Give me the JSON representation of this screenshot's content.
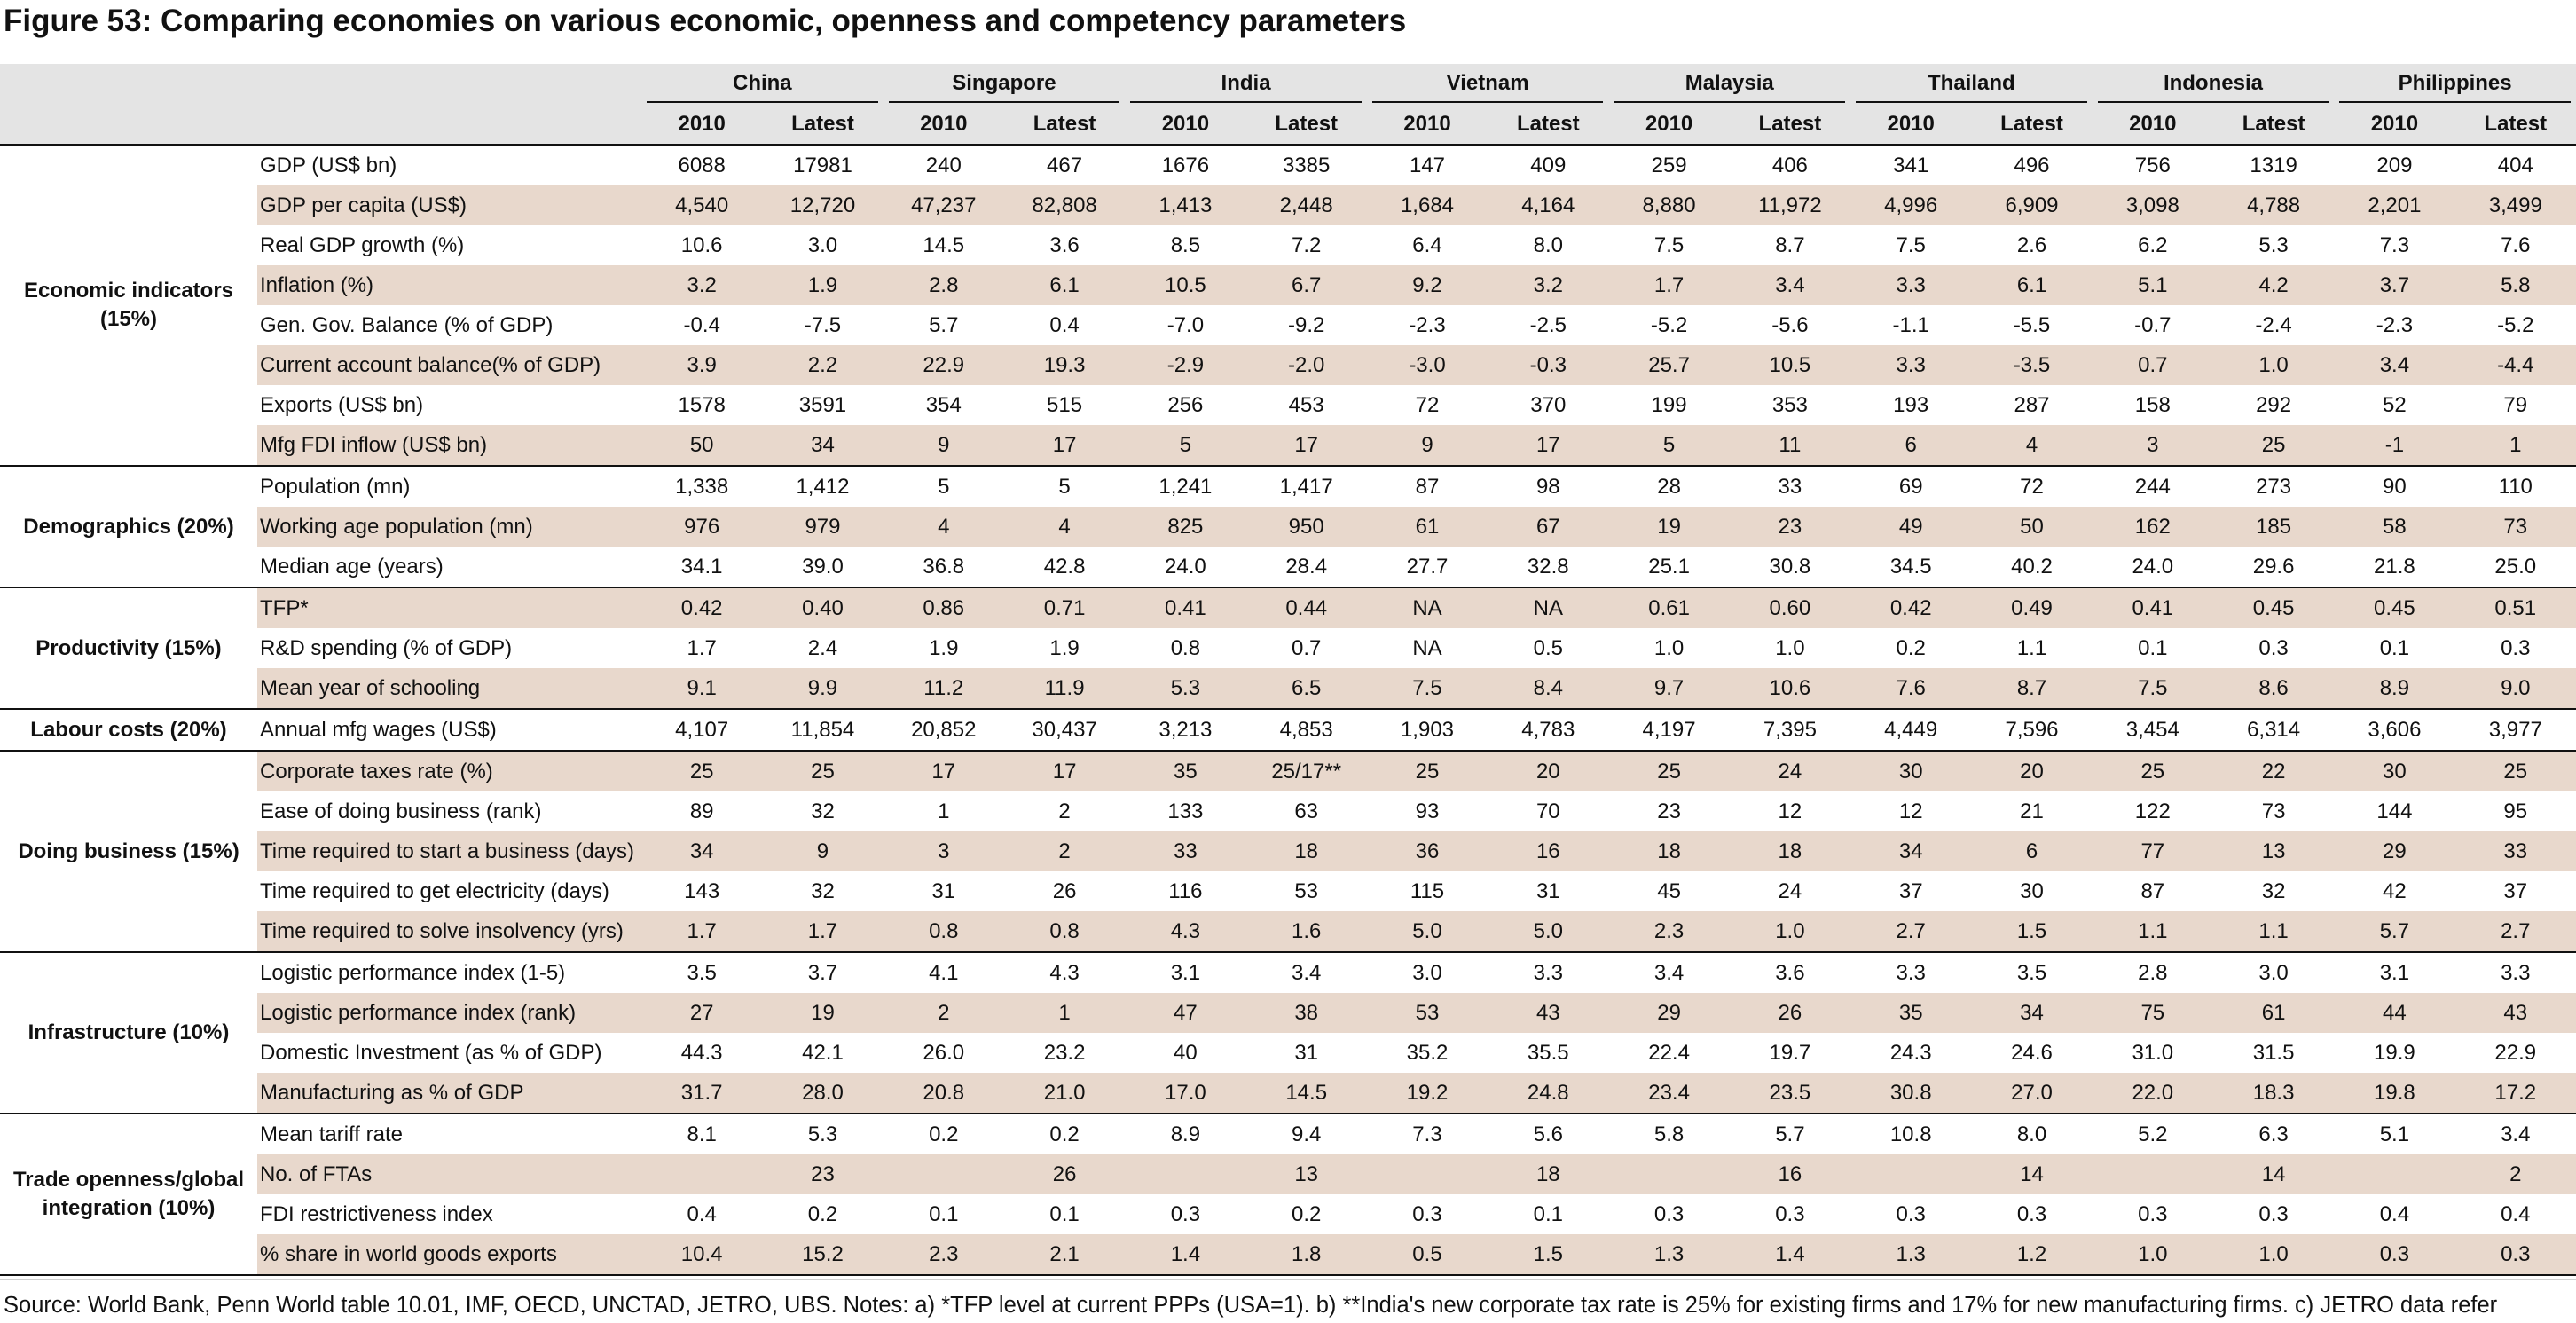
{
  "title": "Figure 53: Comparing economies on various economic, openness and competency parameters",
  "countries": [
    "China",
    "Singapore",
    "India",
    "Vietnam",
    "Malaysia",
    "Thailand",
    "Indonesia",
    "Philippines"
  ],
  "year_labels": [
    "2010",
    "Latest"
  ],
  "groups": [
    {
      "name": "Economic indicators (15%)",
      "rows": [
        {
          "label": "GDP (US$ bn)",
          "values": [
            "6088",
            "17981",
            "240",
            "467",
            "1676",
            "3385",
            "147",
            "409",
            "259",
            "406",
            "341",
            "496",
            "756",
            "1319",
            "209",
            "404"
          ]
        },
        {
          "label": "GDP per capita (US$)",
          "values": [
            "4,540",
            "12,720",
            "47,237",
            "82,808",
            "1,413",
            "2,448",
            "1,684",
            "4,164",
            "8,880",
            "11,972",
            "4,996",
            "6,909",
            "3,098",
            "4,788",
            "2,201",
            "3,499"
          ]
        },
        {
          "label": "Real GDP growth (%)",
          "values": [
            "10.6",
            "3.0",
            "14.5",
            "3.6",
            "8.5",
            "7.2",
            "6.4",
            "8.0",
            "7.5",
            "8.7",
            "7.5",
            "2.6",
            "6.2",
            "5.3",
            "7.3",
            "7.6"
          ]
        },
        {
          "label": "Inflation (%)",
          "values": [
            "3.2",
            "1.9",
            "2.8",
            "6.1",
            "10.5",
            "6.7",
            "9.2",
            "3.2",
            "1.7",
            "3.4",
            "3.3",
            "6.1",
            "5.1",
            "4.2",
            "3.7",
            "5.8"
          ]
        },
        {
          "label": "Gen. Gov. Balance (% of GDP)",
          "values": [
            "-0.4",
            "-7.5",
            "5.7",
            "0.4",
            "-7.0",
            "-9.2",
            "-2.3",
            "-2.5",
            "-5.2",
            "-5.6",
            "-1.1",
            "-5.5",
            "-0.7",
            "-2.4",
            "-2.3",
            "-5.2"
          ]
        },
        {
          "label": "Current account balance(% of GDP)",
          "values": [
            "3.9",
            "2.2",
            "22.9",
            "19.3",
            "-2.9",
            "-2.0",
            "-3.0",
            "-0.3",
            "25.7",
            "10.5",
            "3.3",
            "-3.5",
            "0.7",
            "1.0",
            "3.4",
            "-4.4"
          ]
        },
        {
          "label": "Exports (US$ bn)",
          "values": [
            "1578",
            "3591",
            "354",
            "515",
            "256",
            "453",
            "72",
            "370",
            "199",
            "353",
            "193",
            "287",
            "158",
            "292",
            "52",
            "79"
          ]
        },
        {
          "label": "Mfg FDI inflow (US$ bn)",
          "values": [
            "50",
            "34",
            "9",
            "17",
            "5",
            "17",
            "9",
            "17",
            "5",
            "11",
            "6",
            "4",
            "3",
            "25",
            "-1",
            "1"
          ]
        }
      ]
    },
    {
      "name": "Demographics (20%)",
      "rows": [
        {
          "label": "Population (mn)",
          "values": [
            "1,338",
            "1,412",
            "5",
            "5",
            "1,241",
            "1,417",
            "87",
            "98",
            "28",
            "33",
            "69",
            "72",
            "244",
            "273",
            "90",
            "110"
          ]
        },
        {
          "label": "Working age population (mn)",
          "values": [
            "976",
            "979",
            "4",
            "4",
            "825",
            "950",
            "61",
            "67",
            "19",
            "23",
            "49",
            "50",
            "162",
            "185",
            "58",
            "73"
          ]
        },
        {
          "label": "Median age (years)",
          "values": [
            "34.1",
            "39.0",
            "36.8",
            "42.8",
            "24.0",
            "28.4",
            "27.7",
            "32.8",
            "25.1",
            "30.8",
            "34.5",
            "40.2",
            "24.0",
            "29.6",
            "21.8",
            "25.0"
          ]
        }
      ]
    },
    {
      "name": "Productivity (15%)",
      "rows": [
        {
          "label": "TFP*",
          "values": [
            "0.42",
            "0.40",
            "0.86",
            "0.71",
            "0.41",
            "0.44",
            "NA",
            "NA",
            "0.61",
            "0.60",
            "0.42",
            "0.49",
            "0.41",
            "0.45",
            "0.45",
            "0.51"
          ]
        },
        {
          "label": "R&D spending (% of GDP)",
          "values": [
            "1.7",
            "2.4",
            "1.9",
            "1.9",
            "0.8",
            "0.7",
            "NA",
            "0.5",
            "1.0",
            "1.0",
            "0.2",
            "1.1",
            "0.1",
            "0.3",
            "0.1",
            "0.3"
          ]
        },
        {
          "label": "Mean year of schooling",
          "values": [
            "9.1",
            "9.9",
            "11.2",
            "11.9",
            "5.3",
            "6.5",
            "7.5",
            "8.4",
            "9.7",
            "10.6",
            "7.6",
            "8.7",
            "7.5",
            "8.6",
            "8.9",
            "9.0"
          ]
        }
      ]
    },
    {
      "name": "Labour costs (20%)",
      "rows": [
        {
          "label": "Annual mfg wages (US$)",
          "values": [
            "4,107",
            "11,854",
            "20,852",
            "30,437",
            "3,213",
            "4,853",
            "1,903",
            "4,783",
            "4,197",
            "7,395",
            "4,449",
            "7,596",
            "3,454",
            "6,314",
            "3,606",
            "3,977"
          ]
        }
      ]
    },
    {
      "name": "Doing business (15%)",
      "rows": [
        {
          "label": "Corporate taxes rate (%)",
          "values": [
            "25",
            "25",
            "17",
            "17",
            "35",
            "25/17**",
            "25",
            "20",
            "25",
            "24",
            "30",
            "20",
            "25",
            "22",
            "30",
            "25"
          ]
        },
        {
          "label": "Ease of doing business (rank)",
          "values": [
            "89",
            "32",
            "1",
            "2",
            "133",
            "63",
            "93",
            "70",
            "23",
            "12",
            "12",
            "21",
            "122",
            "73",
            "144",
            "95"
          ]
        },
        {
          "label": "Time required to start a business (days)",
          "values": [
            "34",
            "9",
            "3",
            "2",
            "33",
            "18",
            "36",
            "16",
            "18",
            "18",
            "34",
            "6",
            "77",
            "13",
            "29",
            "33"
          ]
        },
        {
          "label": "Time required to get electricity (days)",
          "values": [
            "143",
            "32",
            "31",
            "26",
            "116",
            "53",
            "115",
            "31",
            "45",
            "24",
            "37",
            "30",
            "87",
            "32",
            "42",
            "37"
          ]
        },
        {
          "label": "Time required to solve insolvency (yrs)",
          "values": [
            "1.7",
            "1.7",
            "0.8",
            "0.8",
            "4.3",
            "1.6",
            "5.0",
            "5.0",
            "2.3",
            "1.0",
            "2.7",
            "1.5",
            "1.1",
            "1.1",
            "5.7",
            "2.7"
          ]
        }
      ]
    },
    {
      "name": "Infrastructure (10%)",
      "rows": [
        {
          "label": "Logistic performance index (1-5)",
          "values": [
            "3.5",
            "3.7",
            "4.1",
            "4.3",
            "3.1",
            "3.4",
            "3.0",
            "3.3",
            "3.4",
            "3.6",
            "3.3",
            "3.5",
            "2.8",
            "3.0",
            "3.1",
            "3.3"
          ]
        },
        {
          "label": "Logistic performance index (rank)",
          "values": [
            "27",
            "19",
            "2",
            "1",
            "47",
            "38",
            "53",
            "43",
            "29",
            "26",
            "35",
            "34",
            "75",
            "61",
            "44",
            "43"
          ]
        },
        {
          "label": "Domestic Investment (as % of GDP)",
          "values": [
            "44.3",
            "42.1",
            "26.0",
            "23.2",
            "40",
            "31",
            "35.2",
            "35.5",
            "22.4",
            "19.7",
            "24.3",
            "24.6",
            "31.0",
            "31.5",
            "19.9",
            "22.9"
          ]
        },
        {
          "label": "Manufacturing as % of GDP",
          "values": [
            "31.7",
            "28.0",
            "20.8",
            "21.0",
            "17.0",
            "14.5",
            "19.2",
            "24.8",
            "23.4",
            "23.5",
            "30.8",
            "27.0",
            "22.0",
            "18.3",
            "19.8",
            "17.2"
          ]
        }
      ]
    },
    {
      "name": "Trade openness/global integration (10%)",
      "rows": [
        {
          "label": "Mean tariff rate",
          "values": [
            "8.1",
            "5.3",
            "0.2",
            "0.2",
            "8.9",
            "9.4",
            "7.3",
            "5.6",
            "5.8",
            "5.7",
            "10.8",
            "8.0",
            "5.2",
            "6.3",
            "5.1",
            "3.4"
          ]
        },
        {
          "label": "No. of FTAs",
          "values": [
            "",
            "23",
            "",
            "26",
            "",
            "13",
            "",
            "18",
            "",
            "16",
            "",
            "14",
            "",
            "14",
            "",
            "2"
          ]
        },
        {
          "label": "FDI restrictiveness index",
          "values": [
            "0.4",
            "0.2",
            "0.1",
            "0.1",
            "0.3",
            "0.2",
            "0.3",
            "0.1",
            "0.3",
            "0.3",
            "0.3",
            "0.3",
            "0.3",
            "0.3",
            "0.4",
            "0.4"
          ]
        },
        {
          "label": "% share in world goods exports",
          "values": [
            "10.4",
            "15.2",
            "2.3",
            "2.1",
            "1.4",
            "1.8",
            "0.5",
            "1.5",
            "1.3",
            "1.4",
            "1.3",
            "1.2",
            "1.0",
            "1.0",
            "0.3",
            "0.3"
          ]
        }
      ]
    }
  ],
  "source": "Source: World Bank, Penn World table 10.01, IMF, OECD, UNCTAD, JETRO, UBS. Notes: a) *TFP level at current PPPs (USA=1). b) **India's new corporate tax rate is 25% for existing firms and 17% for new manufacturing firms. c) JETRO data refer"
}
